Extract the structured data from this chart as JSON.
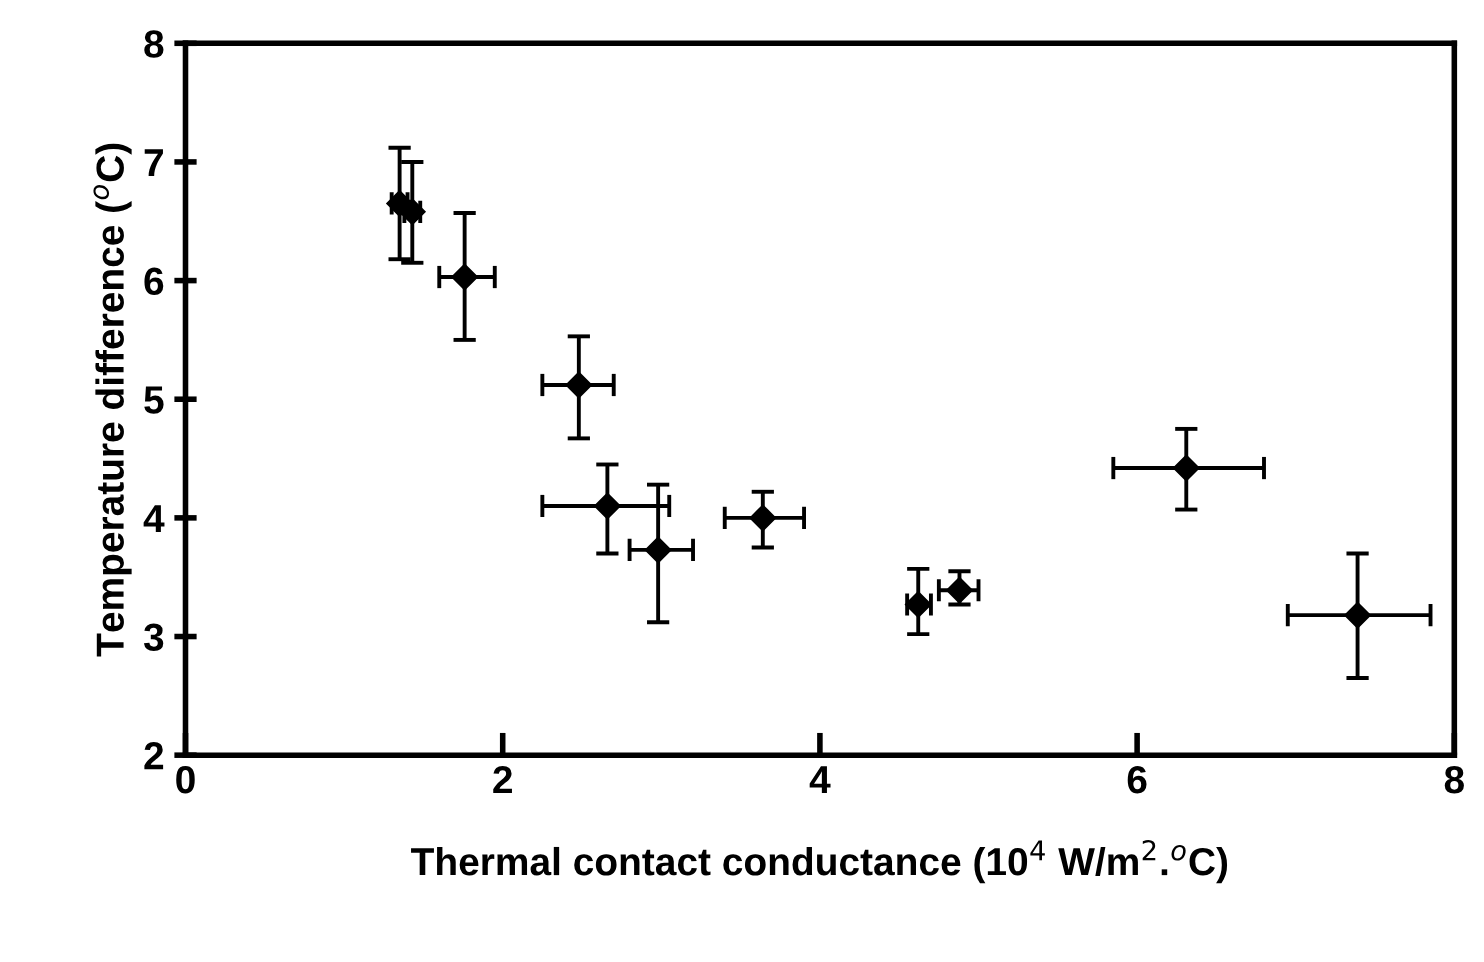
{
  "chart_data": {
    "type": "scatter",
    "xlabel": "Thermal contact conductance (10$^{4}$ W/m$^{2}$.$^{o}$C)",
    "ylabel": "Temperature difference ($^{o}$C)",
    "x": [
      1.35,
      1.43,
      1.76,
      2.48,
      2.66,
      2.98,
      3.64,
      4.62,
      4.88,
      6.31,
      7.39
    ],
    "values": [
      6.65,
      6.58,
      6.03,
      5.12,
      4.1,
      3.73,
      4.0,
      3.27,
      3.39,
      4.42,
      3.18
    ],
    "errors": [
      [
        6.18,
        7.12
      ],
      [
        6.15,
        7.0
      ],
      [
        5.5,
        6.57
      ],
      [
        4.67,
        5.53
      ],
      [
        3.7,
        4.45
      ],
      [
        3.12,
        4.28
      ],
      [
        3.75,
        4.22
      ],
      [
        3.02,
        3.57
      ],
      [
        3.27,
        3.55
      ],
      [
        4.07,
        4.75
      ],
      [
        2.65,
        3.7
      ]
    ],
    "xerrors": [
      [
        1.3,
        1.4
      ],
      [
        1.38,
        1.48
      ],
      [
        1.6,
        1.95
      ],
      [
        2.25,
        2.7
      ],
      [
        2.25,
        3.05
      ],
      [
        2.8,
        3.2
      ],
      [
        3.4,
        3.9
      ],
      [
        4.55,
        4.7
      ],
      [
        4.75,
        5.0
      ],
      [
        5.85,
        6.8
      ],
      [
        6.95,
        7.85
      ]
    ],
    "color": "#000000",
    "marker": "diamond",
    "xlim": [
      0,
      8
    ],
    "ylim": [
      2,
      8
    ],
    "xticks": [
      0,
      2,
      4,
      6,
      8
    ],
    "yticks": [
      2,
      3,
      4,
      5,
      6,
      7,
      8
    ],
    "grid": false
  }
}
